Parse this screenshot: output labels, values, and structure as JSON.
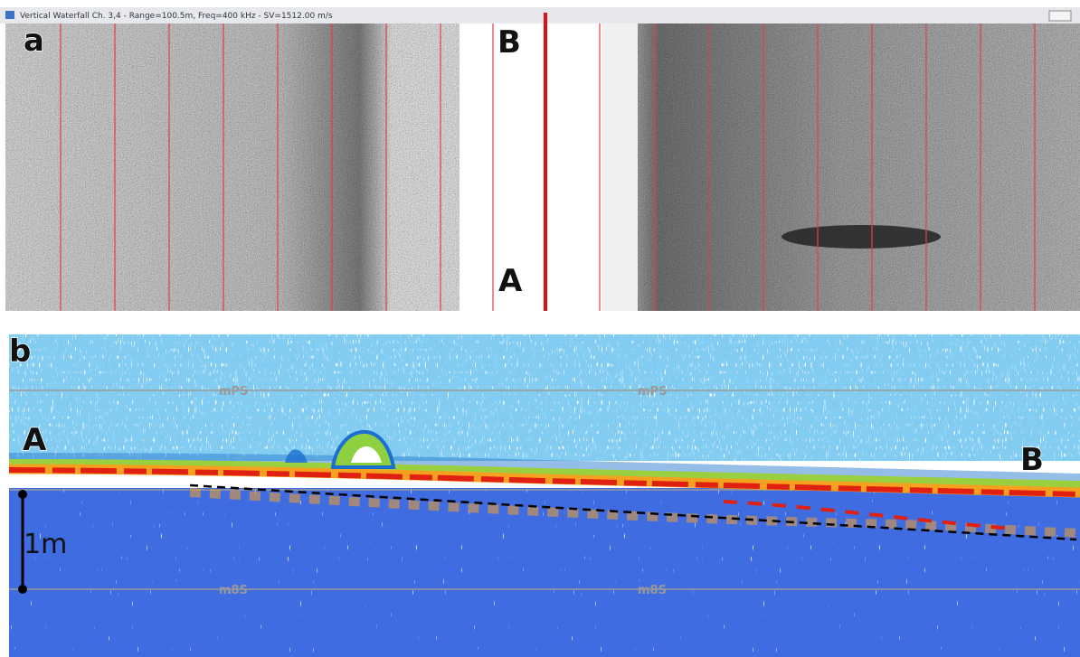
{
  "panel_a": {
    "window_title": "Vertical Waterfall Ch. 3,4 - Range=100.5m, Freq=400 kHz - SV=1512.00 m/s",
    "label": "a",
    "top_marker": "B",
    "bottom_marker": "A"
  },
  "panel_b": {
    "label": "b",
    "left_marker": "A",
    "right_marker": "B",
    "scale_label": "1m",
    "upper_grid_label": "mPS",
    "lower_grid_label": "m8S"
  }
}
